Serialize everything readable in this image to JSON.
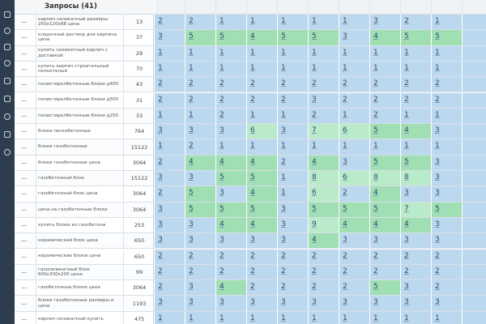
{
  "header": {
    "title": "Запросы (41)"
  },
  "rows": [
    {
      "query": "кирпич силикатный размеры 250х120х88 цена",
      "freq": "13",
      "positions": [
        2,
        2,
        1,
        1,
        1,
        1,
        1,
        3,
        2,
        1
      ]
    },
    {
      "query": "кладочный раствор для кирпича цена",
      "freq": "37",
      "positions": [
        3,
        5,
        5,
        4,
        5,
        5,
        3,
        4,
        5,
        5
      ]
    },
    {
      "query": "купить силикатный кирпич с доставкой",
      "freq": "29",
      "positions": [
        1,
        1,
        1,
        1,
        1,
        1,
        1,
        1,
        1,
        1
      ]
    },
    {
      "query": "купить кирпич строительный полнотелый",
      "freq": "70",
      "positions": [
        1,
        1,
        1,
        1,
        1,
        1,
        1,
        1,
        1,
        1
      ]
    },
    {
      "query": "полистиролбетонные блоки д400",
      "freq": "43",
      "positions": [
        2,
        2,
        2,
        2,
        2,
        2,
        2,
        2,
        2,
        2
      ]
    },
    {
      "query": "полистиролбетонные блоки д500",
      "freq": "31",
      "positions": [
        2,
        2,
        2,
        2,
        2,
        3,
        2,
        2,
        2,
        2
      ]
    },
    {
      "query": "полистиролбетонные блоки д250",
      "freq": "33",
      "positions": [
        1,
        1,
        2,
        1,
        1,
        2,
        1,
        2,
        1,
        1
      ]
    },
    {
      "query": "блоки пескобетонные",
      "freq": "764",
      "positions": [
        3,
        3,
        3,
        6,
        3,
        7,
        6,
        5,
        4,
        3
      ]
    },
    {
      "query": "блоки газобетонные",
      "freq": "15122",
      "positions": [
        1,
        2,
        1,
        1,
        1,
        1,
        1,
        1,
        1,
        1
      ]
    },
    {
      "query": "блоки газобетонные цена",
      "freq": "3064",
      "positions": [
        2,
        4,
        4,
        4,
        2,
        4,
        3,
        5,
        5,
        3
      ]
    },
    {
      "query": "газобетонный блок",
      "freq": "15122",
      "positions": [
        3,
        3,
        5,
        5,
        1,
        8,
        6,
        8,
        8,
        3
      ]
    },
    {
      "query": "газобетонный блок цена",
      "freq": "3064",
      "positions": [
        2,
        5,
        3,
        4,
        1,
        6,
        2,
        4,
        3,
        3
      ]
    },
    {
      "query": "цена на газобетонные блоки",
      "freq": "3064",
      "positions": [
        3,
        5,
        5,
        5,
        3,
        5,
        5,
        5,
        7,
        5
      ]
    },
    {
      "query": "купить блоки из газобетона",
      "freq": "253",
      "positions": [
        3,
        3,
        4,
        4,
        3,
        9,
        4,
        4,
        4,
        3
      ]
    },
    {
      "query": "керамический блок цена",
      "freq": "650",
      "positions": [
        3,
        3,
        3,
        3,
        3,
        4,
        3,
        3,
        3,
        3
      ]
    },
    {
      "query": "керамические блоки цена",
      "freq": "650",
      "positions": [
        2,
        2,
        2,
        2,
        2,
        2,
        2,
        2,
        2,
        2
      ]
    },
    {
      "query": "газосиликатный блок 600х300х200 цена",
      "freq": "99",
      "positions": [
        2,
        2,
        2,
        2,
        2,
        2,
        2,
        2,
        2,
        2
      ]
    },
    {
      "query": "газобетонные блоки цена",
      "freq": "3064",
      "positions": [
        2,
        3,
        4,
        2,
        2,
        2,
        2,
        5,
        3,
        2
      ]
    },
    {
      "query": "блоки газобетонные размеры и цена",
      "freq": "1193",
      "positions": [
        3,
        3,
        3,
        3,
        3,
        3,
        3,
        3,
        3,
        3
      ]
    },
    {
      "query": "кирпич силикатный купить",
      "freq": "475",
      "positions": [
        1,
        1,
        1,
        1,
        1,
        1,
        1,
        1,
        1,
        1
      ]
    }
  ]
}
